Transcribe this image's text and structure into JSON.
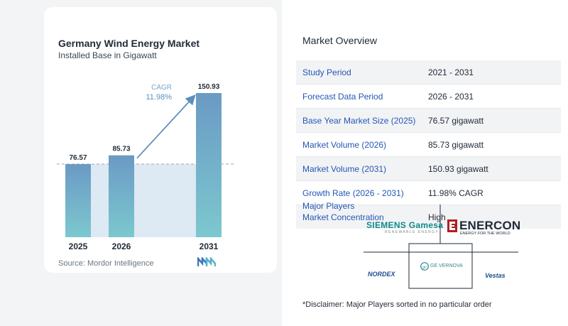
{
  "chart_data": {
    "type": "bar",
    "title": "Germany Wind Energy Market",
    "subtitle": "Installed Base in Gigawatt",
    "categories": [
      "2025",
      "2026",
      "2031"
    ],
    "values": [
      76.57,
      85.73,
      150.93
    ],
    "value_labels": [
      "76.57",
      "85.73",
      "150.93"
    ],
    "cagr_label": "CAGR",
    "cagr_value": "11.98%",
    "xlabel": "",
    "ylabel": "",
    "grid": false,
    "colors": {
      "bar_top": "#6b9ac4",
      "bar_bottom": "#7cc8cf",
      "band": "#dde9f3",
      "arrow": "#5b8fc0"
    }
  },
  "source": "Source: Mordor Intelligence",
  "overview": {
    "title": "Market Overview",
    "rows": [
      {
        "label": "Study Period",
        "value": "2021 - 2031"
      },
      {
        "label": "Forecast Data Period",
        "value": "2026 - 2031"
      },
      {
        "label": "Base Year Market Size (2025)",
        "value": "76.57 gigawatt"
      },
      {
        "label": "Market Volume (2026)",
        "value": "85.73 gigawatt"
      },
      {
        "label": "Market Volume (2031)",
        "value": "150.93 gigawatt"
      },
      {
        "label": "Growth Rate (2026 - 2031)",
        "value": "11.98% CAGR"
      },
      {
        "label": "Market Concentration",
        "value": "High"
      }
    ]
  },
  "players": {
    "title": "Major Players",
    "siemens": {
      "main": "SIEMENS Gamesa",
      "sub": "RENEWABLE ENERGY"
    },
    "enercon": {
      "main": "ENERCON",
      "sub": "ENERGY FOR THE WORLD"
    },
    "nordex": "NORDEX",
    "ge": "GE VERNOVA",
    "vestas": "Vestas"
  },
  "disclaimer": "*Disclaimer: Major Players sorted in no particular order"
}
